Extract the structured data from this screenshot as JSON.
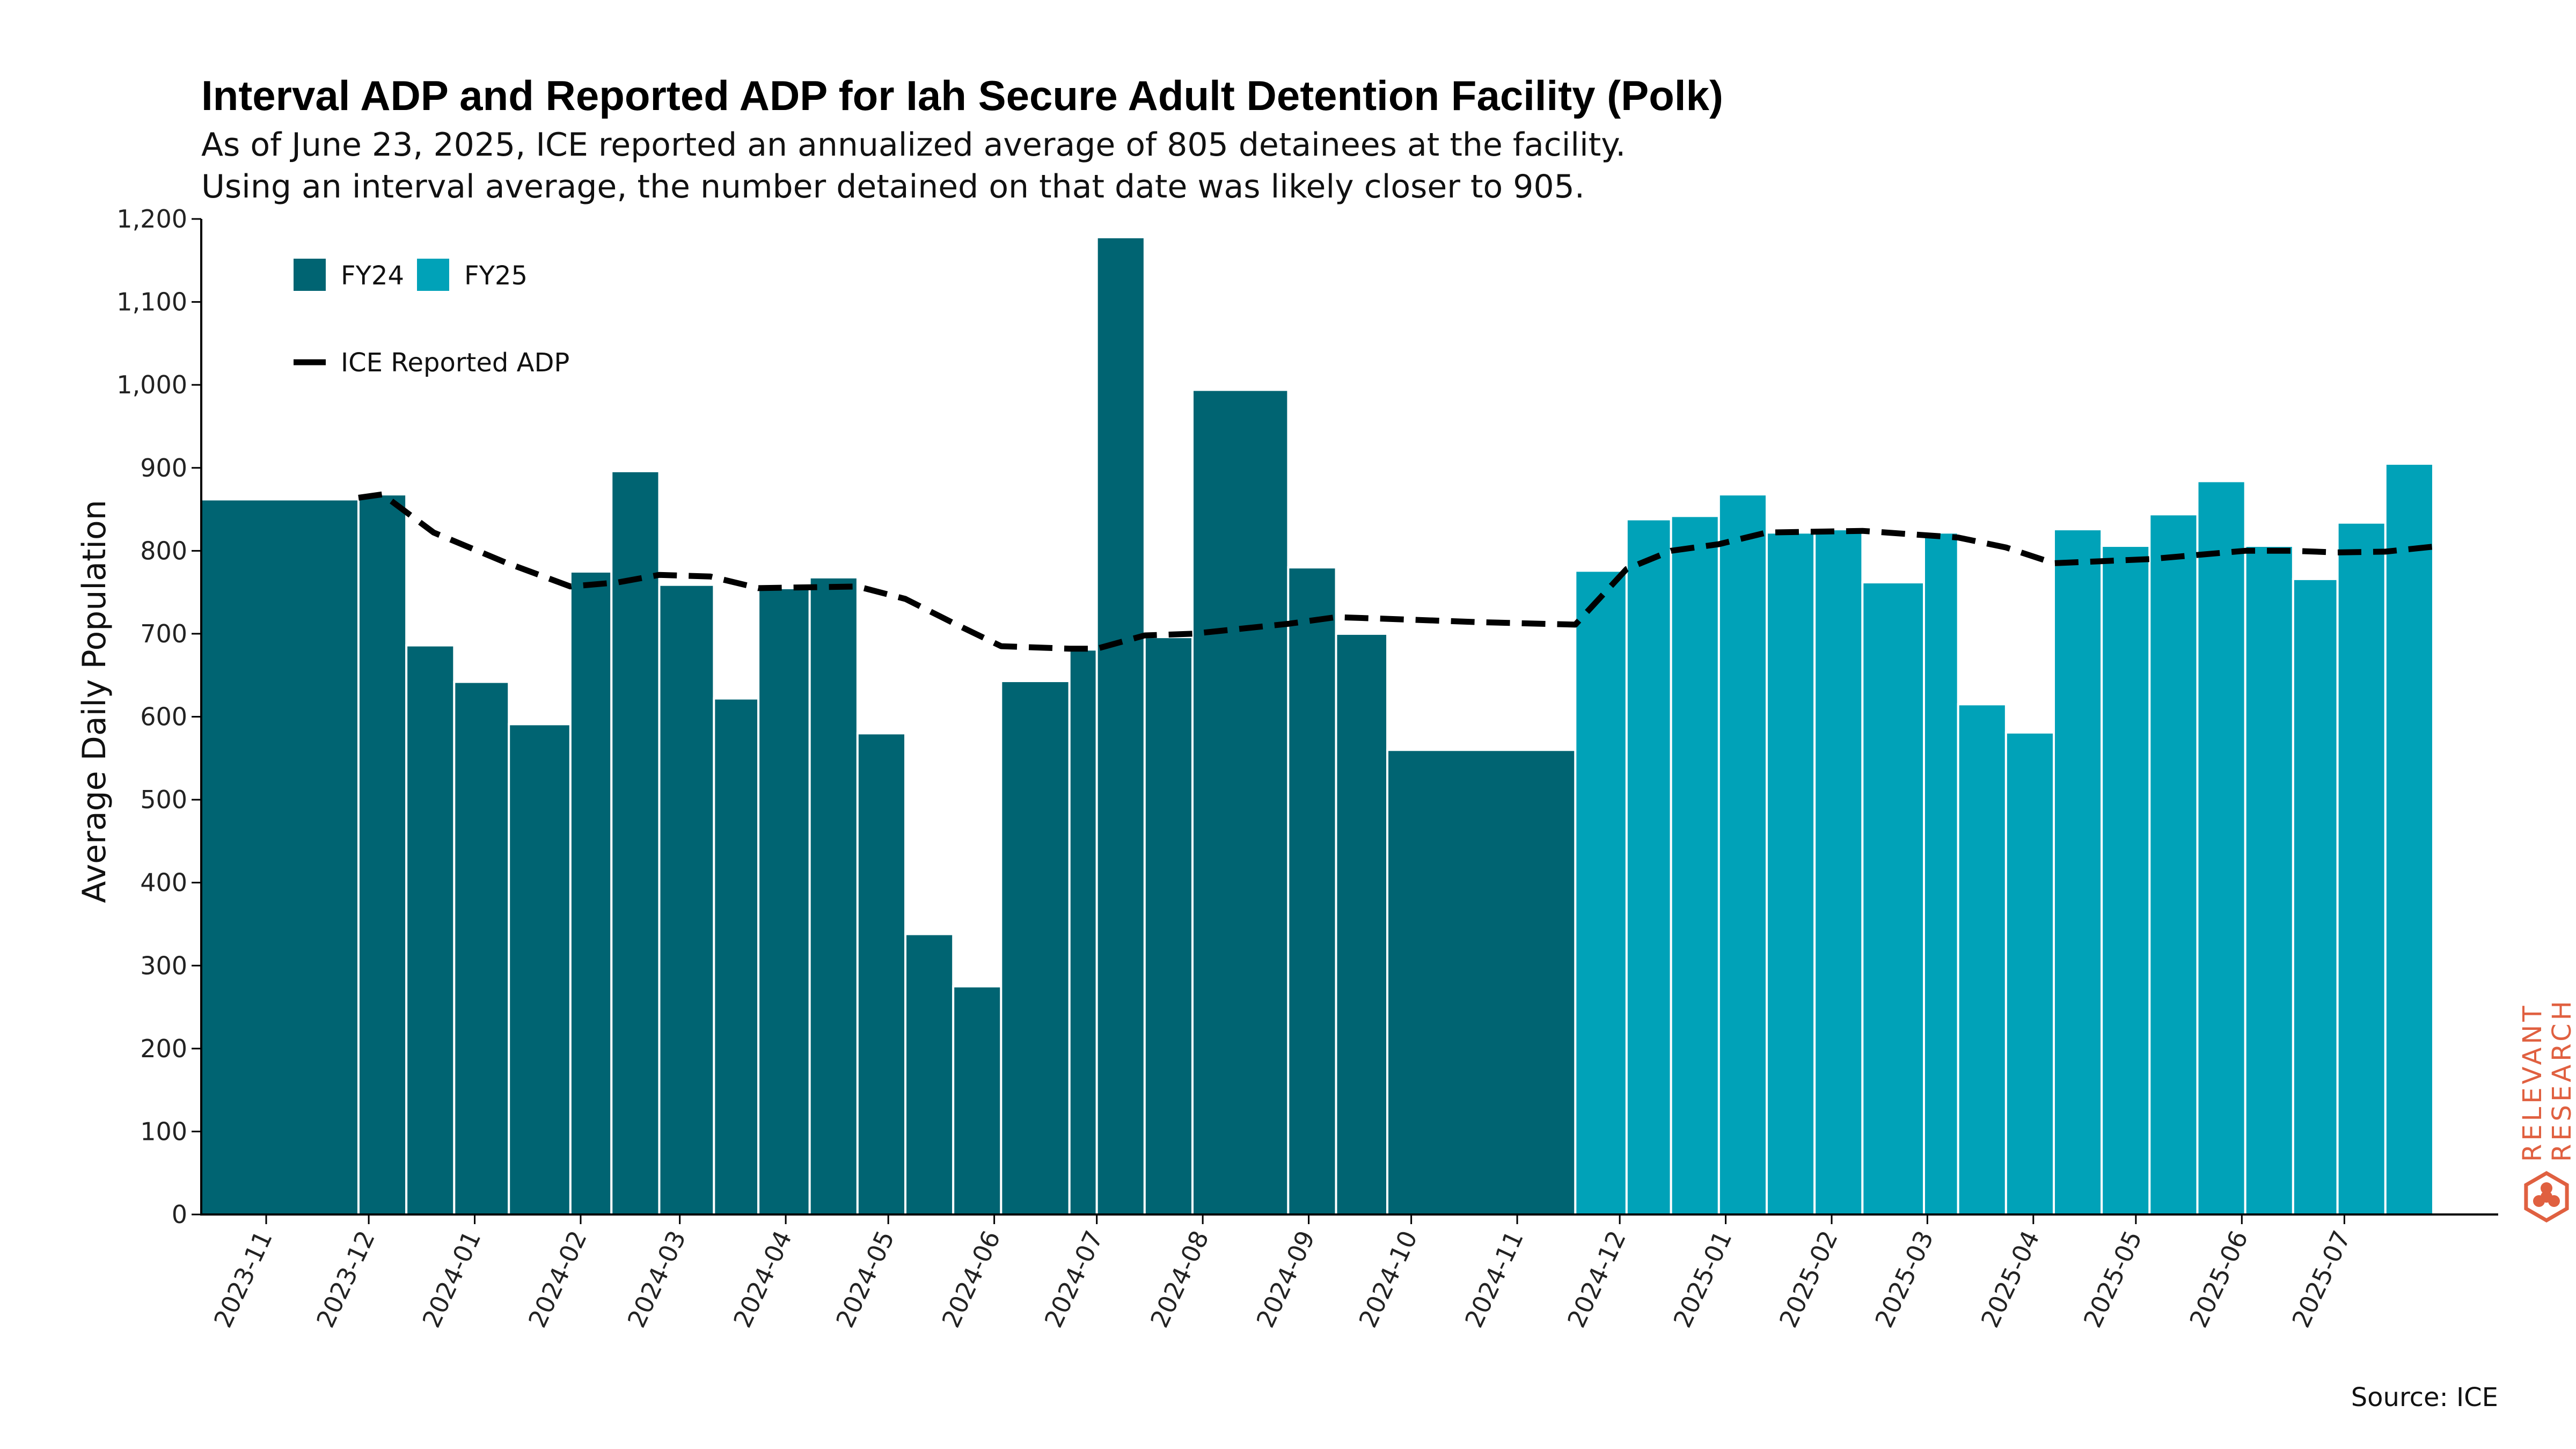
{
  "chart_data": {
    "type": "bar",
    "title": "Interval ADP and Reported ADP for Iah Secure Adult Detention Facility (Polk)",
    "subtitle_lines": [
      "As of June 23, 2025, ICE reported an annualized average of 805 detainees at the facility.",
      "Using an interval average, the number detained on that date was likely closer to 905."
    ],
    "ylabel": "Average Daily Population",
    "ylim": [
      0,
      1200
    ],
    "y_ticks": [
      "0",
      "100",
      "200",
      "300",
      "400",
      "500",
      "600",
      "700",
      "800",
      "900",
      "1,000",
      "1,100",
      "1,200"
    ],
    "x_ticks": [
      "2023-11",
      "2023-12",
      "2024-01",
      "2024-02",
      "2024-03",
      "2024-04",
      "2024-05",
      "2024-06",
      "2024-07",
      "2024-08",
      "2024-09",
      "2024-10",
      "2024-11",
      "2024-12",
      "2025-01",
      "2025-02",
      "2025-03",
      "2025-04",
      "2025-05",
      "2025-06",
      "2025-07"
    ],
    "x_axis_type": "date",
    "grid": false,
    "legend": {
      "placement": "top-left",
      "entries": [
        {
          "label": "FY24",
          "color": "#006472",
          "kind": "bar"
        },
        {
          "label": "FY25",
          "color": "#00a2b8",
          "kind": "bar"
        },
        {
          "label": "ICE Reported ADP",
          "color": "#000000",
          "kind": "dashed-line"
        }
      ]
    },
    "series": [
      {
        "name": "FY24",
        "color": "#006472",
        "intervals": [
          {
            "start": "2023-10-13",
            "end": "2023-11-28",
            "value": 862
          },
          {
            "start": "2023-11-28",
            "end": "2023-12-12",
            "value": 868
          },
          {
            "start": "2023-12-12",
            "end": "2023-12-26",
            "value": 686
          },
          {
            "start": "2023-12-26",
            "end": "2024-01-11",
            "value": 642
          },
          {
            "start": "2024-01-11",
            "end": "2024-01-29",
            "value": 591
          },
          {
            "start": "2024-01-29",
            "end": "2024-02-10",
            "value": 775
          },
          {
            "start": "2024-02-10",
            "end": "2024-02-24",
            "value": 896
          },
          {
            "start": "2024-02-24",
            "end": "2024-03-11",
            "value": 759
          },
          {
            "start": "2024-03-11",
            "end": "2024-03-24",
            "value": 622
          },
          {
            "start": "2024-03-24",
            "end": "2024-04-08",
            "value": 755
          },
          {
            "start": "2024-04-08",
            "end": "2024-04-22",
            "value": 768
          },
          {
            "start": "2024-04-22",
            "end": "2024-05-06",
            "value": 580
          },
          {
            "start": "2024-05-06",
            "end": "2024-05-20",
            "value": 338
          },
          {
            "start": "2024-05-20",
            "end": "2024-06-03",
            "value": 275
          },
          {
            "start": "2024-06-03",
            "end": "2024-06-23",
            "value": 643
          },
          {
            "start": "2024-06-23",
            "end": "2024-07-01",
            "value": 681
          },
          {
            "start": "2024-07-01",
            "end": "2024-07-15",
            "value": 1178
          },
          {
            "start": "2024-07-15",
            "end": "2024-07-29",
            "value": 696
          },
          {
            "start": "2024-07-29",
            "end": "2024-08-26",
            "value": 994
          },
          {
            "start": "2024-08-26",
            "end": "2024-09-09",
            "value": 780
          },
          {
            "start": "2024-09-09",
            "end": "2024-09-24",
            "value": 700
          },
          {
            "start": "2024-09-24",
            "end": "2024-11-18",
            "value": 560
          }
        ]
      },
      {
        "name": "FY25",
        "color": "#00a2b8",
        "intervals": [
          {
            "start": "2024-11-18",
            "end": "2024-12-03",
            "value": 776
          },
          {
            "start": "2024-12-03",
            "end": "2024-12-16",
            "value": 838
          },
          {
            "start": "2024-12-16",
            "end": "2024-12-30",
            "value": 842
          },
          {
            "start": "2024-12-30",
            "end": "2025-01-13",
            "value": 868
          },
          {
            "start": "2025-01-13",
            "end": "2025-01-27",
            "value": 822
          },
          {
            "start": "2025-01-27",
            "end": "2025-02-10",
            "value": 826
          },
          {
            "start": "2025-02-10",
            "end": "2025-02-28",
            "value": 762
          },
          {
            "start": "2025-02-28",
            "end": "2025-03-10",
            "value": 822
          },
          {
            "start": "2025-03-10",
            "end": "2025-03-24",
            "value": 615
          },
          {
            "start": "2025-03-24",
            "end": "2025-04-07",
            "value": 581
          },
          {
            "start": "2025-04-07",
            "end": "2025-04-21",
            "value": 826
          },
          {
            "start": "2025-04-21",
            "end": "2025-05-05",
            "value": 806
          },
          {
            "start": "2025-05-05",
            "end": "2025-05-19",
            "value": 844
          },
          {
            "start": "2025-05-19",
            "end": "2025-06-02",
            "value": 884
          },
          {
            "start": "2025-06-02",
            "end": "2025-06-16",
            "value": 806
          },
          {
            "start": "2025-06-16",
            "end": "2025-06-29",
            "value": 766
          },
          {
            "start": "2025-06-29",
            "end": "2025-07-13",
            "value": 834
          },
          {
            "start": "2025-07-13",
            "end": "2025-07-27",
            "value": 905
          }
        ]
      }
    ],
    "line": {
      "name": "ICE Reported ADP",
      "color": "#000000",
      "points": [
        {
          "date": "2023-11-28",
          "value": 864
        },
        {
          "date": "2023-12-05",
          "value": 868
        },
        {
          "date": "2023-12-20",
          "value": 822
        },
        {
          "date": "2024-01-10",
          "value": 786
        },
        {
          "date": "2024-01-29",
          "value": 757
        },
        {
          "date": "2024-02-12",
          "value": 762
        },
        {
          "date": "2024-02-24",
          "value": 771
        },
        {
          "date": "2024-03-10",
          "value": 769
        },
        {
          "date": "2024-03-24",
          "value": 755
        },
        {
          "date": "2024-04-22",
          "value": 757
        },
        {
          "date": "2024-05-06",
          "value": 742
        },
        {
          "date": "2024-05-20",
          "value": 713
        },
        {
          "date": "2024-06-03",
          "value": 685
        },
        {
          "date": "2024-06-23",
          "value": 682
        },
        {
          "date": "2024-07-01",
          "value": 682
        },
        {
          "date": "2024-07-15",
          "value": 698
        },
        {
          "date": "2024-07-29",
          "value": 700
        },
        {
          "date": "2024-08-26",
          "value": 712
        },
        {
          "date": "2024-09-09",
          "value": 720
        },
        {
          "date": "2024-09-24",
          "value": 718
        },
        {
          "date": "2024-10-21",
          "value": 714
        },
        {
          "date": "2024-11-18",
          "value": 711
        },
        {
          "date": "2024-12-03",
          "value": 778
        },
        {
          "date": "2024-12-16",
          "value": 800
        },
        {
          "date": "2024-12-30",
          "value": 808
        },
        {
          "date": "2025-01-13",
          "value": 822
        },
        {
          "date": "2025-02-10",
          "value": 824
        },
        {
          "date": "2025-03-10",
          "value": 816
        },
        {
          "date": "2025-03-24",
          "value": 804
        },
        {
          "date": "2025-04-07",
          "value": 785
        },
        {
          "date": "2025-05-05",
          "value": 790
        },
        {
          "date": "2025-06-02",
          "value": 800
        },
        {
          "date": "2025-06-16",
          "value": 800
        },
        {
          "date": "2025-06-29",
          "value": 798
        },
        {
          "date": "2025-07-13",
          "value": 799
        },
        {
          "date": "2025-07-27",
          "value": 805
        }
      ]
    },
    "source": "Source: ICE"
  },
  "logo": {
    "line1": "RELEVANT",
    "line2": "RESEARCH",
    "color": "#e06040"
  }
}
